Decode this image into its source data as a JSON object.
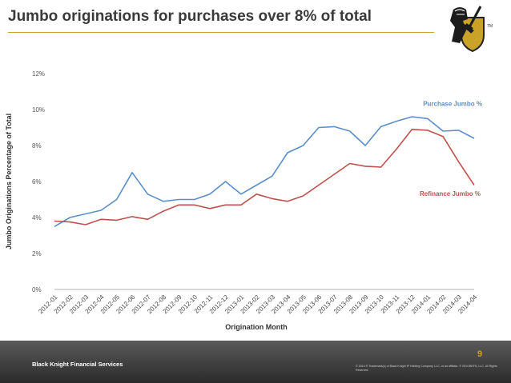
{
  "slide": {
    "title": "Jumbo originations for purchases over 8% of total",
    "page_number": "9",
    "company": "Black Knight Financial Services",
    "legal": "© 2014 ® Trademark(s) of Black Knight IP Holding Company, LLC, or an affiliate. © 2014 BKFS, LLC. All Rights Reserved.",
    "logo_icon": "black-knight-icon",
    "logo_tm": "TM",
    "colors": {
      "accent": "#c9a227",
      "footer": "#3a3a3a"
    }
  },
  "chart_data": {
    "type": "line",
    "title": "",
    "xlabel": "Origination Month",
    "ylabel": "Jumbo Originations Percentage of Total",
    "ylim": [
      0,
      12
    ],
    "yticks": [
      0,
      2,
      4,
      6,
      8,
      10,
      12
    ],
    "ytick_labels": [
      "0%",
      "2%",
      "4%",
      "6%",
      "8%",
      "10%",
      "12%"
    ],
    "grid": false,
    "categories": [
      "2012-01",
      "2012-02",
      "2012-03",
      "2012-04",
      "2012-05",
      "2012-06",
      "2012-07",
      "2012-08",
      "2012-09",
      "2012-10",
      "2012-11",
      "2012-12",
      "2013-01",
      "2013-02",
      "2013-03",
      "2013-04",
      "2013-05",
      "2013-06",
      "2013-07",
      "2013-08",
      "2013-09",
      "2013-10",
      "2013-11",
      "2013-12",
      "2014-01",
      "2014-02",
      "2014-03",
      "2014-04"
    ],
    "series": [
      {
        "name": "Purchase Jumbo %",
        "color": "#5b8ec7",
        "values": [
          3.5,
          4.0,
          4.2,
          4.4,
          5.0,
          6.5,
          5.3,
          4.9,
          5.0,
          5.0,
          5.3,
          6.0,
          5.3,
          5.8,
          6.3,
          7.6,
          8.0,
          9.0,
          9.05,
          8.8,
          8.0,
          9.05,
          9.35,
          9.6,
          9.5,
          8.8,
          8.85,
          8.4
        ]
      },
      {
        "name": "Refinance Jumbo %",
        "color": "#c0504d",
        "values": [
          3.8,
          3.75,
          3.6,
          3.9,
          3.85,
          4.05,
          3.9,
          4.35,
          4.7,
          4.7,
          4.5,
          4.7,
          4.7,
          5.3,
          5.05,
          4.9,
          5.2,
          5.8,
          6.4,
          7.0,
          6.85,
          6.8,
          7.8,
          8.9,
          8.85,
          8.5,
          7.1,
          5.8
        ]
      }
    ]
  }
}
